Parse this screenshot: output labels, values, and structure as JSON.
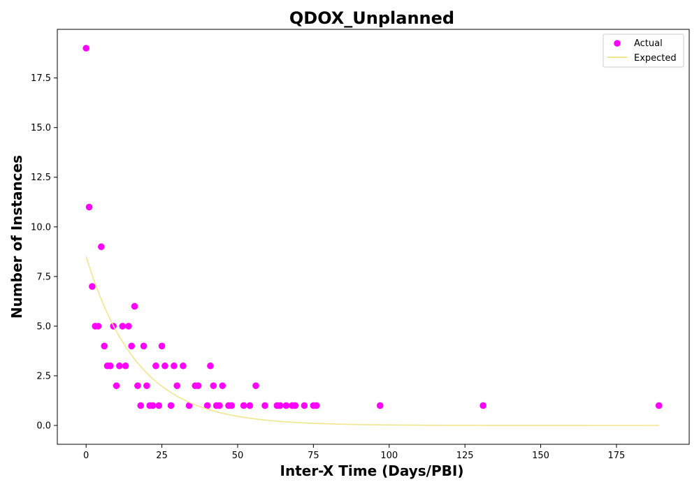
{
  "chart_data": {
    "type": "scatter",
    "title": "QDOX_Unplanned",
    "xlabel": "Inter-X Time (Days/PBI)",
    "ylabel": "Number of Instances",
    "xlim": [
      -9.5,
      199
    ],
    "ylim": [
      -0.95,
      19.95
    ],
    "xticks": [
      0,
      25,
      50,
      75,
      100,
      125,
      150,
      175
    ],
    "yticks": [
      0.0,
      2.5,
      5.0,
      7.5,
      10.0,
      12.5,
      15.0,
      17.5
    ],
    "xtick_labels": [
      "0",
      "25",
      "50",
      "75",
      "100",
      "125",
      "150",
      "175"
    ],
    "ytick_labels": [
      "0.0",
      "2.5",
      "5.0",
      "7.5",
      "10.0",
      "12.5",
      "15.0",
      "17.5"
    ],
    "grid": false,
    "legend_position": "top-right",
    "series": [
      {
        "name": "Actual",
        "kind": "scatter",
        "color": "#ff00ff",
        "points": [
          [
            0,
            19
          ],
          [
            1,
            11
          ],
          [
            2,
            7
          ],
          [
            3,
            5
          ],
          [
            4,
            5
          ],
          [
            5,
            9
          ],
          [
            6,
            4
          ],
          [
            7,
            3
          ],
          [
            8,
            3
          ],
          [
            9,
            5
          ],
          [
            10,
            2
          ],
          [
            11,
            3
          ],
          [
            12,
            5
          ],
          [
            13,
            3
          ],
          [
            14,
            5
          ],
          [
            15,
            4
          ],
          [
            16,
            6
          ],
          [
            17,
            2
          ],
          [
            18,
            1
          ],
          [
            19,
            4
          ],
          [
            20,
            2
          ],
          [
            21,
            1
          ],
          [
            22,
            1
          ],
          [
            23,
            3
          ],
          [
            24,
            1
          ],
          [
            25,
            4
          ],
          [
            26,
            3
          ],
          [
            28,
            1
          ],
          [
            29,
            3
          ],
          [
            30,
            2
          ],
          [
            32,
            3
          ],
          [
            34,
            1
          ],
          [
            36,
            2
          ],
          [
            37,
            2
          ],
          [
            40,
            1
          ],
          [
            41,
            3
          ],
          [
            42,
            2
          ],
          [
            43,
            1
          ],
          [
            44,
            1
          ],
          [
            45,
            2
          ],
          [
            47,
            1
          ],
          [
            48,
            1
          ],
          [
            52,
            1
          ],
          [
            54,
            1
          ],
          [
            56,
            2
          ],
          [
            59,
            1
          ],
          [
            63,
            1
          ],
          [
            64,
            1
          ],
          [
            66,
            1
          ],
          [
            68,
            1
          ],
          [
            69,
            1
          ],
          [
            72,
            1
          ],
          [
            75,
            1
          ],
          [
            76,
            1
          ],
          [
            97,
            1
          ],
          [
            131,
            1
          ],
          [
            189,
            1
          ]
        ]
      },
      {
        "name": "Expected",
        "kind": "line",
        "color": "#f0e68c",
        "model": "exponential",
        "amplitude": 8.5,
        "rate": 0.0584,
        "x_range": [
          0,
          189
        ]
      }
    ]
  }
}
